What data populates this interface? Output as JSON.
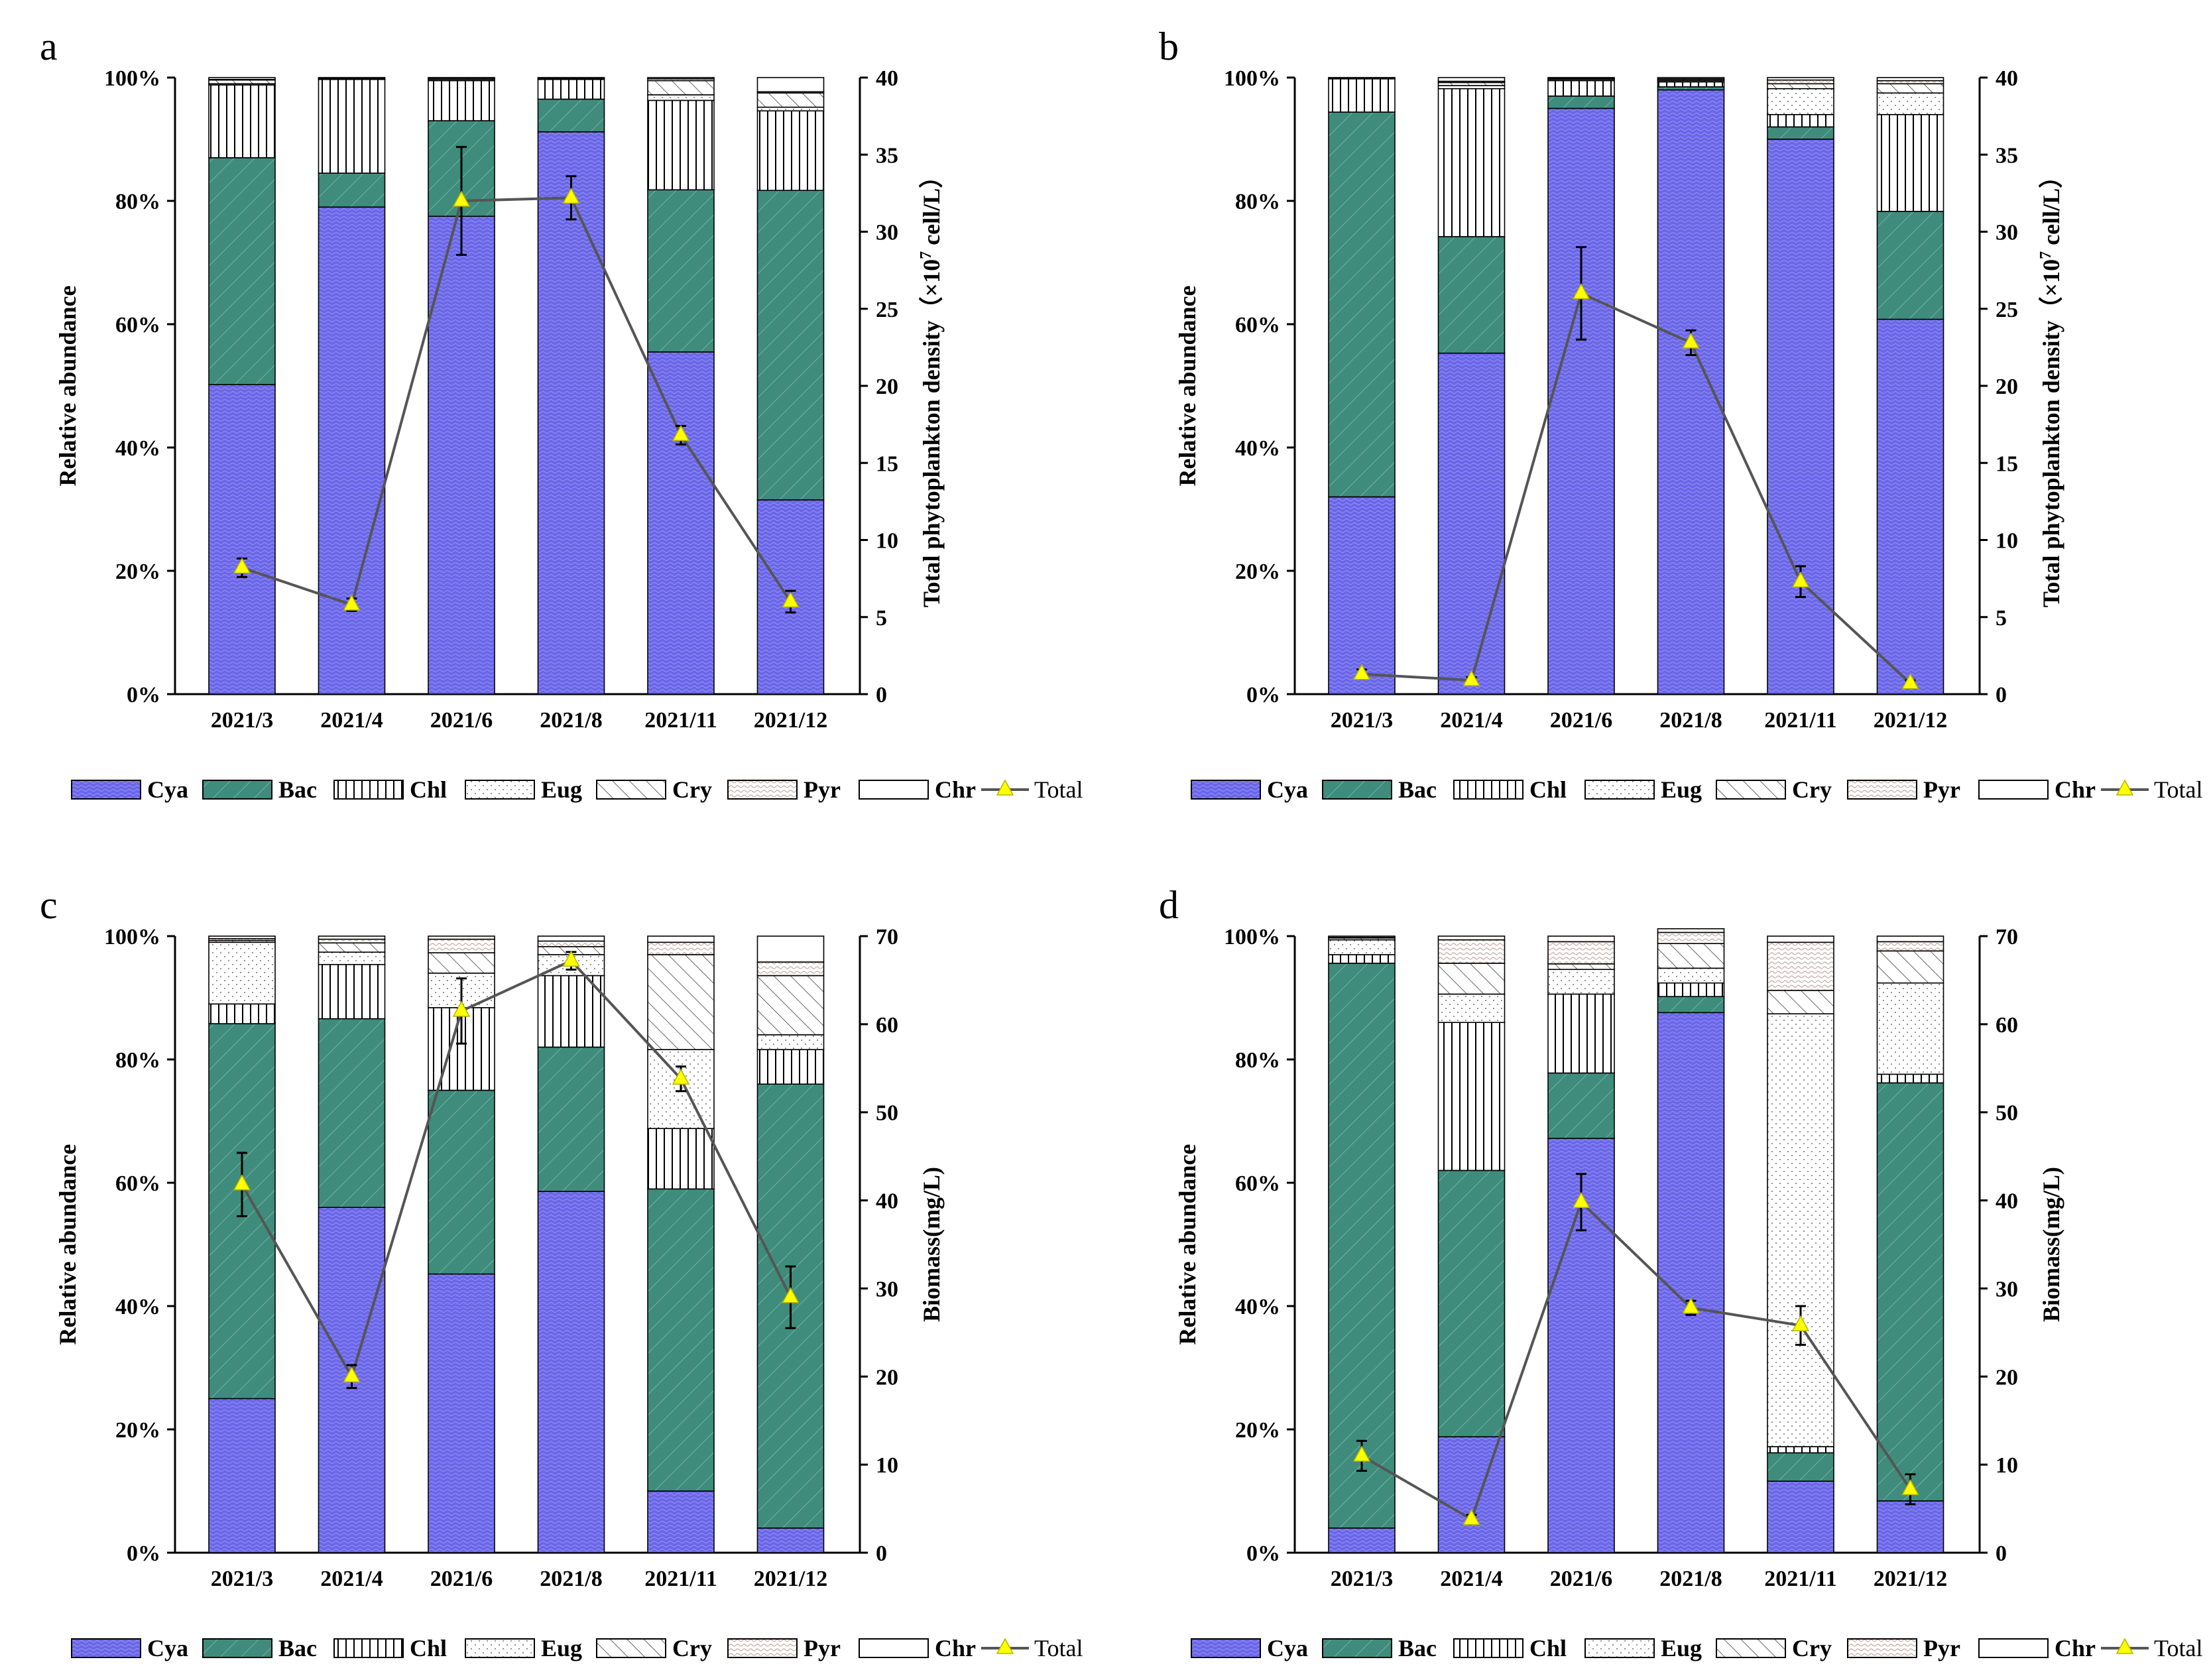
{
  "figure": {
    "legend": {
      "items": [
        "Cya",
        "Bac",
        "Chl",
        "Eug",
        "Cry",
        "Pyr",
        "Chr"
      ],
      "total_label": "Total"
    },
    "colors": {
      "Cya": "#6a66e8",
      "Bac": "#3f8c7c",
      "Chl": "#ffffff",
      "Eug": "#ffffff",
      "Cry": "#ffffff",
      "Pyr": "#ffffff",
      "Chr": "#ffffff",
      "line": "#555555",
      "marker": "#ffff00"
    }
  },
  "chart_data": [
    {
      "panel": "a",
      "type": "bar",
      "stacked": true,
      "categories": [
        "2021/3",
        "2021/4",
        "2021/6",
        "2021/8",
        "2021/11",
        "2021/12"
      ],
      "ylabel_left": "Relative abundance",
      "ylabel_right_parts": [
        "Total phytoplankton density（×10",
        "7",
        " cell/L）"
      ],
      "ylim_left": [
        0,
        100
      ],
      "left_ticks": [
        "0%",
        "20%",
        "40%",
        "60%",
        "80%",
        "100%"
      ],
      "ylim_right": [
        0,
        40
      ],
      "right_ticks": [
        "0",
        "5",
        "10",
        "15",
        "20",
        "25",
        "30",
        "35",
        "40"
      ],
      "series": [
        {
          "name": "Cya",
          "values": [
            50.2,
            79.0,
            77.5,
            91.2,
            55.5,
            31.5
          ]
        },
        {
          "name": "Bac",
          "values": [
            36.8,
            5.5,
            15.5,
            5.3,
            26.3,
            50.2
          ]
        },
        {
          "name": "Chl",
          "values": [
            11.8,
            15.2,
            6.5,
            3.2,
            14.5,
            12.9
          ]
        },
        {
          "name": "Eug",
          "values": [
            0.2,
            0.1,
            0.2,
            0.1,
            0.9,
            0.6
          ]
        },
        {
          "name": "Cry",
          "values": [
            0.6,
            0.1,
            0.2,
            0.1,
            2.3,
            2.3
          ]
        },
        {
          "name": "Pyr",
          "values": [
            0.1,
            0.0,
            0.0,
            0.0,
            0.3,
            0.2
          ]
        },
        {
          "name": "Chr",
          "values": [
            0.3,
            0.1,
            0.1,
            0.1,
            0.2,
            2.3
          ]
        }
      ],
      "total": {
        "name": "Total",
        "values": [
          8.2,
          5.8,
          32.0,
          32.2,
          16.8,
          6.0
        ],
        "errors": [
          0.6,
          0.4,
          3.5,
          1.4,
          0.6,
          0.7
        ]
      }
    },
    {
      "panel": "b",
      "type": "bar",
      "stacked": true,
      "categories": [
        "2021/3",
        "2021/4",
        "2021/6",
        "2021/8",
        "2021/11",
        "2021/12"
      ],
      "ylabel_left": "Relative abundance",
      "ylabel_right_parts": [
        "Total phytoplankton density（×10",
        "7",
        " cell/L）"
      ],
      "ylim_left": [
        0,
        100
      ],
      "left_ticks": [
        "0%",
        "20%",
        "40%",
        "60%",
        "80%",
        "100%"
      ],
      "ylim_right": [
        0,
        40
      ],
      "right_ticks": [
        "0",
        "5",
        "10",
        "15",
        "20",
        "25",
        "30",
        "35",
        "40"
      ],
      "series": [
        {
          "name": "Cya",
          "values": [
            32.0,
            55.3,
            95.0,
            98.0,
            90.0,
            60.8
          ]
        },
        {
          "name": "Bac",
          "values": [
            62.4,
            18.9,
            2.0,
            0.5,
            2.0,
            17.5
          ]
        },
        {
          "name": "Chl",
          "values": [
            5.4,
            24.0,
            2.5,
            0.8,
            2.0,
            15.7
          ]
        },
        {
          "name": "Eug",
          "values": [
            0.1,
            0.5,
            0.2,
            0.2,
            4.2,
            3.5
          ]
        },
        {
          "name": "Cry",
          "values": [
            0.0,
            0.5,
            0.1,
            0.2,
            0.8,
            1.5
          ]
        },
        {
          "name": "Pyr",
          "values": [
            0.0,
            0.2,
            0.1,
            0.1,
            0.6,
            0.5
          ]
        },
        {
          "name": "Chr",
          "values": [
            0.1,
            0.6,
            0.1,
            0.2,
            0.4,
            0.5
          ]
        }
      ],
      "total": {
        "name": "Total",
        "values": [
          1.3,
          0.9,
          26.0,
          22.8,
          7.3,
          0.7
        ],
        "errors": [
          0.3,
          0.2,
          3.0,
          0.8,
          1.0,
          0.2
        ]
      }
    },
    {
      "panel": "c",
      "type": "bar",
      "stacked": true,
      "categories": [
        "2021/3",
        "2021/4",
        "2021/6",
        "2021/8",
        "2021/11",
        "2021/12"
      ],
      "ylabel_left": "Relative abundance",
      "ylabel_right_parts": [
        "Biomass(mg/L)",
        "",
        ""
      ],
      "ylim_left": [
        0,
        100
      ],
      "left_ticks": [
        "0%",
        "20%",
        "40%",
        "60%",
        "80%",
        "100%"
      ],
      "ylim_right": [
        0,
        70
      ],
      "right_ticks": [
        "0",
        "10",
        "20",
        "30",
        "40",
        "50",
        "60",
        "70"
      ],
      "series": [
        {
          "name": "Cya",
          "values": [
            25.0,
            56.0,
            45.2,
            58.6,
            10.0,
            4.0
          ]
        },
        {
          "name": "Bac",
          "values": [
            60.8,
            30.6,
            29.8,
            23.4,
            49.0,
            72.0
          ]
        },
        {
          "name": "Chl",
          "values": [
            3.2,
            8.8,
            13.4,
            11.6,
            9.8,
            5.6
          ]
        },
        {
          "name": "Eug",
          "values": [
            10.0,
            2.0,
            5.6,
            3.4,
            12.8,
            2.4
          ]
        },
        {
          "name": "Cry",
          "values": [
            0.3,
            1.5,
            3.3,
            1.3,
            15.4,
            9.6
          ]
        },
        {
          "name": "Pyr",
          "values": [
            0.3,
            0.6,
            2.2,
            0.9,
            2.0,
            2.2
          ]
        },
        {
          "name": "Chr",
          "values": [
            0.4,
            0.5,
            0.5,
            0.8,
            1.0,
            4.2
          ]
        }
      ],
      "total": {
        "name": "Total",
        "values": [
          41.8,
          20.0,
          61.5,
          67.2,
          53.8,
          29.0
        ],
        "errors": [
          3.6,
          1.3,
          3.7,
          1.0,
          1.4,
          3.5
        ]
      }
    },
    {
      "panel": "d",
      "type": "bar",
      "stacked": true,
      "categories": [
        "2021/3",
        "2021/4",
        "2021/6",
        "2021/8",
        "2021/11",
        "2021/12"
      ],
      "ylabel_left": "Relative abundance",
      "ylabel_right_parts": [
        "Biomass(mg/L)",
        "",
        ""
      ],
      "ylim_left": [
        0,
        100
      ],
      "left_ticks": [
        "0%",
        "20%",
        "40%",
        "60%",
        "80%",
        "100%"
      ],
      "ylim_right": [
        0,
        70
      ],
      "right_ticks": [
        "0",
        "10",
        "20",
        "30",
        "40",
        "50",
        "60",
        "70"
      ],
      "series": [
        {
          "name": "Cya",
          "values": [
            4.0,
            18.8,
            67.2,
            87.6,
            11.6,
            8.4
          ]
        },
        {
          "name": "Bac",
          "values": [
            91.6,
            43.2,
            10.6,
            2.6,
            4.6,
            67.8
          ]
        },
        {
          "name": "Chl",
          "values": [
            1.4,
            24.0,
            12.8,
            2.2,
            1.0,
            1.4
          ]
        },
        {
          "name": "Eug",
          "values": [
            2.4,
            4.6,
            4.0,
            2.4,
            70.2,
            14.8
          ]
        },
        {
          "name": "Cry",
          "values": [
            0.3,
            5.0,
            0.9,
            4.0,
            3.8,
            5.2
          ]
        },
        {
          "name": "Pyr",
          "values": [
            0.1,
            3.8,
            3.6,
            1.8,
            7.8,
            1.5
          ]
        },
        {
          "name": "Chr",
          "values": [
            0.2,
            0.6,
            0.9,
            0.6,
            1.0,
            0.9
          ]
        }
      ],
      "total": {
        "name": "Total",
        "values": [
          11.0,
          3.8,
          39.8,
          27.8,
          25.8,
          7.2
        ],
        "errors": [
          1.7,
          0.5,
          3.2,
          0.8,
          2.2,
          1.7
        ]
      }
    }
  ]
}
